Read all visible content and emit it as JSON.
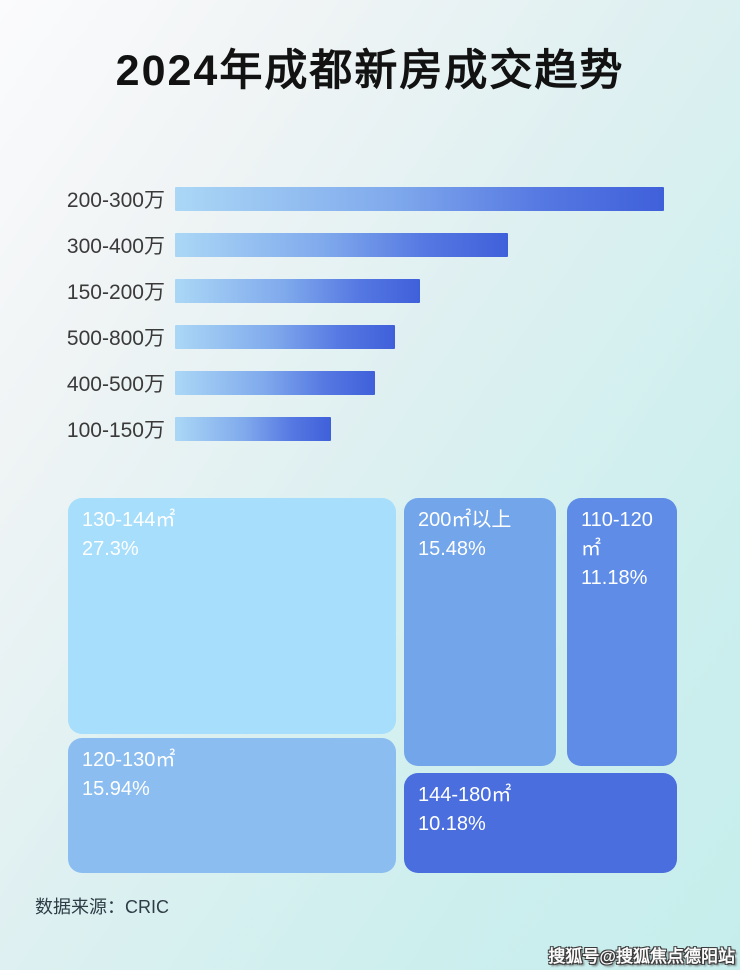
{
  "page": {
    "title": "2024年成都新房成交趋势",
    "source_note": "数据来源：CRIC",
    "watermark": "搜狐号@搜狐焦点德阳站"
  },
  "colors": {
    "background_start": "#fbfbfd",
    "background_end": "#c6edec",
    "bar_gradient_start": "#abd7f6",
    "bar_gradient_end": "#3f60da",
    "title_color": "#121212",
    "bar_label_color": "#3a3a3a"
  },
  "chart_data": [
    {
      "type": "bar",
      "orientation": "horizontal",
      "title": "2024年成都新房成交趋势",
      "categories": [
        "200-300万",
        "300-400万",
        "150-200万",
        "500-800万",
        "400-500万",
        "100-150万"
      ],
      "values": [
        100,
        68,
        50,
        45,
        41,
        32
      ],
      "value_note": "relative bar width as % of longest bar; no numeric labels are shown in the figure",
      "xlabel": "",
      "ylabel": "",
      "grid": false,
      "legend": "none",
      "bar_gradient": [
        "#abd7f6",
        "#3f60da"
      ]
    },
    {
      "type": "treemap",
      "title": "",
      "items": [
        {
          "label": "130-144㎡",
          "value": 27.3,
          "display": "27.3%",
          "color": "#a6defb"
        },
        {
          "label": "200㎡以上",
          "value": 15.48,
          "display": "15.48%",
          "color": "#73a5ea"
        },
        {
          "label": "110-120㎡",
          "value": 11.18,
          "display": "11.18%",
          "color": "#5e8ce6"
        },
        {
          "label": "120-130㎡",
          "value": 15.94,
          "display": "15.94%",
          "color": "#8bbdf0"
        },
        {
          "label": "144-180㎡",
          "value": 10.18,
          "display": "10.18%",
          "color": "#4a6ede"
        }
      ]
    }
  ]
}
